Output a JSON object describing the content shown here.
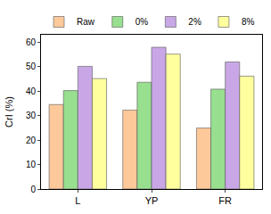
{
  "chart_data": {
    "type": "bar",
    "categories": [
      "L",
      "YP",
      "FR"
    ],
    "y_label": "CrI (%)",
    "series": [
      {
        "name": "Raw",
        "color": "#fdc99a",
        "values": [
          34.5,
          32.2,
          24.9
        ]
      },
      {
        "name": "0%",
        "color": "#98df8f",
        "values": [
          40.2,
          43.6,
          40.8
        ]
      },
      {
        "name": "2%",
        "color": "#c9a7e6",
        "values": [
          50.1,
          57.9,
          51.9
        ]
      },
      {
        "name": "8%",
        "color": "#ffff9e",
        "values": [
          45.1,
          55.1,
          46.1
        ]
      }
    ],
    "ylim": [
      0,
      63
    ],
    "yticks": [
      0,
      10,
      20,
      30,
      40,
      50,
      60
    ],
    "grid": false,
    "legend": "upper left"
  }
}
